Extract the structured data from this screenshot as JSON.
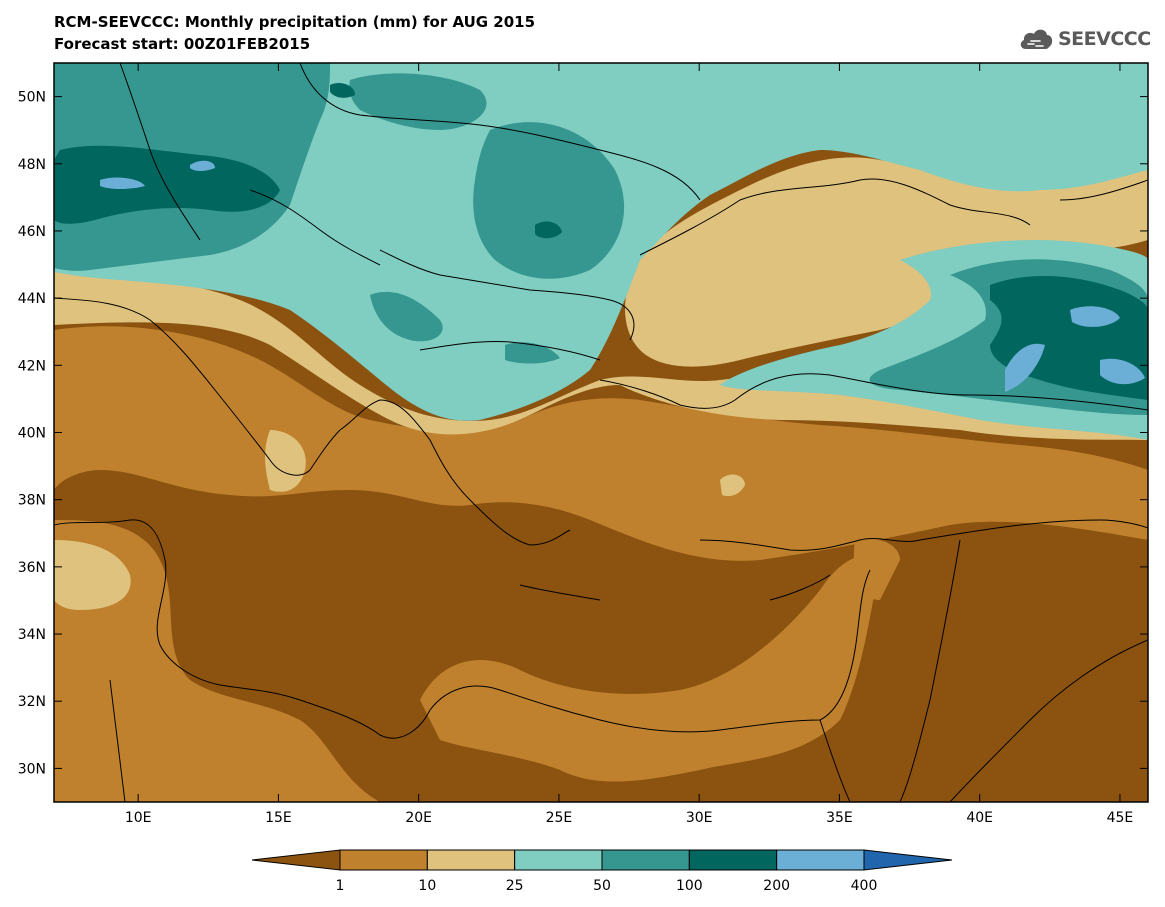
{
  "header": {
    "title_line1": "RCM-SEEVCCC: Monthly precipitation (mm) for AUG 2015",
    "title_line2": "Forecast start: 00Z01FEB2015"
  },
  "logo": {
    "text": "SEEVCCC",
    "icon": "cloud-icon"
  },
  "map": {
    "lon_ticks": [
      {
        "value": 10,
        "label": "10E"
      },
      {
        "value": 15,
        "label": "15E"
      },
      {
        "value": 20,
        "label": "20E"
      },
      {
        "value": 25,
        "label": "25E"
      },
      {
        "value": 30,
        "label": "30E"
      },
      {
        "value": 35,
        "label": "35E"
      },
      {
        "value": 40,
        "label": "40E"
      },
      {
        "value": 45,
        "label": "45E"
      }
    ],
    "lat_ticks": [
      {
        "value": 30,
        "label": "30N"
      },
      {
        "value": 32,
        "label": "32N"
      },
      {
        "value": 34,
        "label": "34N"
      },
      {
        "value": 36,
        "label": "36N"
      },
      {
        "value": 38,
        "label": "38N"
      },
      {
        "value": 40,
        "label": "40N"
      },
      {
        "value": 42,
        "label": "42N"
      },
      {
        "value": 44,
        "label": "44N"
      },
      {
        "value": 46,
        "label": "46N"
      },
      {
        "value": 48,
        "label": "48N"
      },
      {
        "value": 50,
        "label": "50N"
      }
    ]
  },
  "legend": {
    "colors": [
      "#8b5210",
      "#bf812d",
      "#dfc27d",
      "#80cdc1",
      "#35978f",
      "#01665e",
      "#6baed6",
      "#2166ac"
    ],
    "labels": [
      "1",
      "10",
      "25",
      "50",
      "100",
      "200",
      "400"
    ]
  }
}
